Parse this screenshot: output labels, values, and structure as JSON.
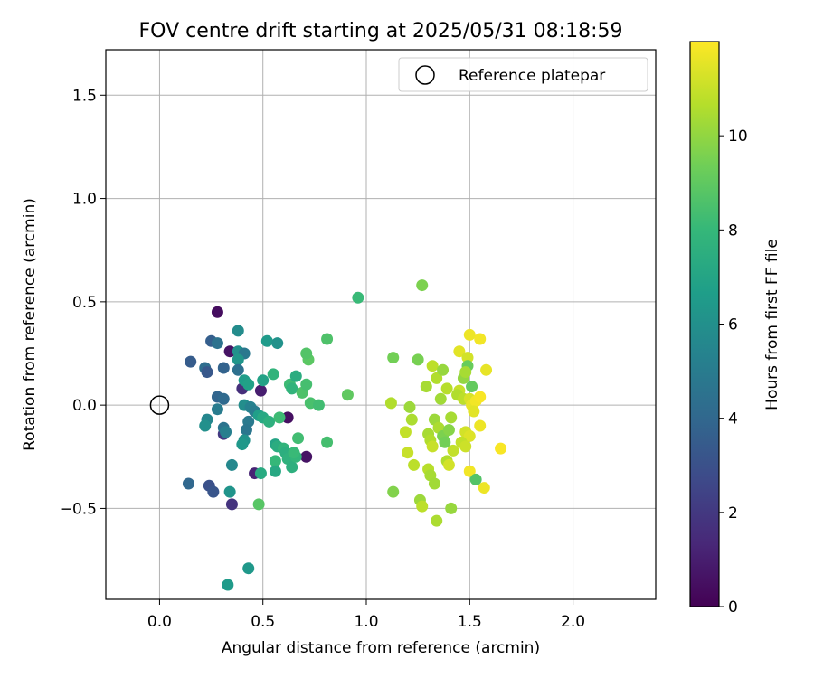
{
  "chart_data": {
    "type": "scatter",
    "title": "FOV centre drift starting at 2025/05/31 08:18:59",
    "xlabel": "Angular distance from reference (arcmin)",
    "ylabel": "Rotation from reference (arcmin)",
    "xlim": [
      -0.26,
      2.4
    ],
    "ylim": [
      -0.94,
      1.72
    ],
    "xticks": [
      0.0,
      0.5,
      1.0,
      1.5,
      2.0
    ],
    "xtick_labels": [
      "0.0",
      "0.5",
      "1.0",
      "1.5",
      "2.0"
    ],
    "yticks": [
      -0.5,
      0.0,
      0.5,
      1.0,
      1.5
    ],
    "ytick_labels": [
      "−0.5",
      "0.0",
      "0.5",
      "1.0",
      "1.5"
    ],
    "grid": true,
    "legend": {
      "position": "top-right",
      "label": "Reference platepar"
    },
    "reference_point": {
      "x": 0.0,
      "y": 0.0
    },
    "colorbar": {
      "label": "Hours from first FF file",
      "colormap": "viridis",
      "range": [
        0,
        12
      ],
      "ticks": [
        0,
        2,
        4,
        6,
        8,
        10
      ],
      "tick_labels": [
        "0",
        "2",
        "4",
        "6",
        "8",
        "10"
      ],
      "colors": [
        "#440154",
        "#482878",
        "#3e4989",
        "#31688e",
        "#26828e",
        "#1f9e89",
        "#35b779",
        "#6ece58",
        "#b5de2b",
        "#fde725"
      ]
    },
    "points": [
      {
        "x": 0.28,
        "y": 0.45,
        "t": 0.4
      },
      {
        "x": 0.34,
        "y": 0.26,
        "t": 0.6
      },
      {
        "x": 0.62,
        "y": -0.06,
        "t": 0.5
      },
      {
        "x": 0.71,
        "y": -0.25,
        "t": 0.6
      },
      {
        "x": 0.49,
        "y": 0.07,
        "t": 1.0
      },
      {
        "x": 0.4,
        "y": 0.08,
        "t": 1.6
      },
      {
        "x": 0.35,
        "y": -0.48,
        "t": 1.8
      },
      {
        "x": 0.31,
        "y": -0.14,
        "t": 2.0
      },
      {
        "x": 0.46,
        "y": -0.33,
        "t": 1.2
      },
      {
        "x": 0.24,
        "y": -0.39,
        "t": 3.0
      },
      {
        "x": 0.26,
        "y": -0.42,
        "t": 3.2
      },
      {
        "x": 0.14,
        "y": -0.38,
        "t": 4.0
      },
      {
        "x": 0.15,
        "y": 0.21,
        "t": 3.5
      },
      {
        "x": 0.25,
        "y": 0.31,
        "t": 3.6
      },
      {
        "x": 0.28,
        "y": 0.3,
        "t": 4.5
      },
      {
        "x": 0.31,
        "y": 0.18,
        "t": 3.8
      },
      {
        "x": 0.22,
        "y": 0.18,
        "t": 4.3
      },
      {
        "x": 0.23,
        "y": 0.16,
        "t": 3.3
      },
      {
        "x": 0.28,
        "y": 0.04,
        "t": 3.9
      },
      {
        "x": 0.31,
        "y": 0.03,
        "t": 4.1
      },
      {
        "x": 0.28,
        "y": -0.02,
        "t": 5.0
      },
      {
        "x": 0.23,
        "y": -0.07,
        "t": 5.5
      },
      {
        "x": 0.22,
        "y": -0.1,
        "t": 6.0
      },
      {
        "x": 0.31,
        "y": -0.11,
        "t": 4.6
      },
      {
        "x": 0.32,
        "y": -0.13,
        "t": 5.2
      },
      {
        "x": 0.35,
        "y": -0.29,
        "t": 5.6
      },
      {
        "x": 0.34,
        "y": -0.42,
        "t": 6.2
      },
      {
        "x": 0.33,
        "y": -0.87,
        "t": 6.5
      },
      {
        "x": 0.43,
        "y": -0.79,
        "t": 6.4
      },
      {
        "x": 0.38,
        "y": 0.36,
        "t": 5.8
      },
      {
        "x": 0.38,
        "y": 0.26,
        "t": 6.0
      },
      {
        "x": 0.41,
        "y": 0.25,
        "t": 4.8
      },
      {
        "x": 0.38,
        "y": 0.22,
        "t": 6.3
      },
      {
        "x": 0.38,
        "y": 0.17,
        "t": 4.4
      },
      {
        "x": 0.41,
        "y": 0.12,
        "t": 6.6
      },
      {
        "x": 0.43,
        "y": 0.1,
        "t": 6.8
      },
      {
        "x": 0.41,
        "y": 0.0,
        "t": 5.9
      },
      {
        "x": 0.44,
        "y": -0.01,
        "t": 5.3
      },
      {
        "x": 0.43,
        "y": -0.08,
        "t": 4.9
      },
      {
        "x": 0.42,
        "y": -0.12,
        "t": 4.7
      },
      {
        "x": 0.41,
        "y": -0.17,
        "t": 6.1
      },
      {
        "x": 0.4,
        "y": -0.19,
        "t": 6.4
      },
      {
        "x": 0.46,
        "y": -0.03,
        "t": 5.1
      },
      {
        "x": 0.48,
        "y": -0.05,
        "t": 6.7
      },
      {
        "x": 0.49,
        "y": -0.33,
        "t": 7.3
      },
      {
        "x": 0.48,
        "y": -0.48,
        "t": 8.8
      },
      {
        "x": 0.5,
        "y": 0.12,
        "t": 6.9
      },
      {
        "x": 0.52,
        "y": 0.31,
        "t": 6.5
      },
      {
        "x": 0.57,
        "y": 0.3,
        "t": 6.1
      },
      {
        "x": 0.55,
        "y": 0.15,
        "t": 7.8
      },
      {
        "x": 0.5,
        "y": -0.06,
        "t": 7.2
      },
      {
        "x": 0.53,
        "y": -0.08,
        "t": 7.6
      },
      {
        "x": 0.56,
        "y": -0.19,
        "t": 7.0
      },
      {
        "x": 0.57,
        "y": -0.2,
        "t": 7.4
      },
      {
        "x": 0.58,
        "y": -0.06,
        "t": 8.2
      },
      {
        "x": 0.6,
        "y": -0.21,
        "t": 7.8
      },
      {
        "x": 0.61,
        "y": -0.23,
        "t": 7.5
      },
      {
        "x": 0.62,
        "y": -0.26,
        "t": 7.7
      },
      {
        "x": 0.56,
        "y": -0.27,
        "t": 8.0
      },
      {
        "x": 0.56,
        "y": -0.32,
        "t": 7.2
      },
      {
        "x": 0.64,
        "y": -0.3,
        "t": 7.6
      },
      {
        "x": 0.66,
        "y": -0.25,
        "t": 7.9
      },
      {
        "x": 0.65,
        "y": -0.23,
        "t": 8.1
      },
      {
        "x": 0.67,
        "y": -0.16,
        "t": 8.3
      },
      {
        "x": 0.63,
        "y": 0.1,
        "t": 8.2
      },
      {
        "x": 0.64,
        "y": 0.08,
        "t": 7.8
      },
      {
        "x": 0.66,
        "y": 0.14,
        "t": 7.4
      },
      {
        "x": 0.69,
        "y": 0.06,
        "t": 8.6
      },
      {
        "x": 0.71,
        "y": 0.1,
        "t": 8.4
      },
      {
        "x": 0.72,
        "y": 0.22,
        "t": 8.9
      },
      {
        "x": 0.71,
        "y": 0.25,
        "t": 8.7
      },
      {
        "x": 0.73,
        "y": 0.01,
        "t": 8.5
      },
      {
        "x": 0.77,
        "y": 0.0,
        "t": 8.3
      },
      {
        "x": 0.81,
        "y": 0.32,
        "t": 8.6
      },
      {
        "x": 0.81,
        "y": -0.18,
        "t": 8.4
      },
      {
        "x": 0.91,
        "y": 0.05,
        "t": 9.0
      },
      {
        "x": 0.96,
        "y": 0.52,
        "t": 8.1
      },
      {
        "x": 1.27,
        "y": 0.58,
        "t": 9.6
      },
      {
        "x": 1.13,
        "y": 0.23,
        "t": 9.4
      },
      {
        "x": 1.25,
        "y": 0.22,
        "t": 9.5
      },
      {
        "x": 1.12,
        "y": 0.01,
        "t": 10.6
      },
      {
        "x": 1.21,
        "y": -0.01,
        "t": 10.2
      },
      {
        "x": 1.29,
        "y": 0.09,
        "t": 10.4
      },
      {
        "x": 1.32,
        "y": 0.19,
        "t": 10.8
      },
      {
        "x": 1.34,
        "y": 0.13,
        "t": 10.6
      },
      {
        "x": 1.37,
        "y": 0.17,
        "t": 10.1
      },
      {
        "x": 1.36,
        "y": 0.03,
        "t": 10.3
      },
      {
        "x": 1.39,
        "y": 0.08,
        "t": 10.7
      },
      {
        "x": 1.22,
        "y": -0.07,
        "t": 10.5
      },
      {
        "x": 1.19,
        "y": -0.13,
        "t": 10.9
      },
      {
        "x": 1.2,
        "y": -0.23,
        "t": 11.0
      },
      {
        "x": 1.23,
        "y": -0.29,
        "t": 10.8
      },
      {
        "x": 1.3,
        "y": -0.14,
        "t": 10.4
      },
      {
        "x": 1.31,
        "y": -0.17,
        "t": 10.6
      },
      {
        "x": 1.32,
        "y": -0.2,
        "t": 11.0
      },
      {
        "x": 1.33,
        "y": -0.07,
        "t": 10.2
      },
      {
        "x": 1.35,
        "y": -0.11,
        "t": 10.5
      },
      {
        "x": 1.37,
        "y": -0.15,
        "t": 9.6
      },
      {
        "x": 1.38,
        "y": -0.18,
        "t": 9.4
      },
      {
        "x": 1.4,
        "y": -0.12,
        "t": 9.8
      },
      {
        "x": 1.41,
        "y": -0.06,
        "t": 10.4
      },
      {
        "x": 1.42,
        "y": -0.22,
        "t": 10.9
      },
      {
        "x": 1.39,
        "y": -0.27,
        "t": 10.6
      },
      {
        "x": 1.4,
        "y": -0.29,
        "t": 11.2
      },
      {
        "x": 1.3,
        "y": -0.31,
        "t": 10.7
      },
      {
        "x": 1.31,
        "y": -0.34,
        "t": 10.4
      },
      {
        "x": 1.33,
        "y": -0.38,
        "t": 10.3
      },
      {
        "x": 1.26,
        "y": -0.46,
        "t": 10.2
      },
      {
        "x": 1.27,
        "y": -0.49,
        "t": 10.8
      },
      {
        "x": 1.34,
        "y": -0.56,
        "t": 10.5
      },
      {
        "x": 1.41,
        "y": -0.5,
        "t": 10.1
      },
      {
        "x": 1.13,
        "y": -0.42,
        "t": 9.7
      },
      {
        "x": 1.45,
        "y": 0.26,
        "t": 11.5
      },
      {
        "x": 1.49,
        "y": 0.23,
        "t": 11.2
      },
      {
        "x": 1.5,
        "y": 0.34,
        "t": 11.7
      },
      {
        "x": 1.55,
        "y": 0.32,
        "t": 11.8
      },
      {
        "x": 1.49,
        "y": 0.19,
        "t": 9.2
      },
      {
        "x": 1.47,
        "y": 0.13,
        "t": 10.0
      },
      {
        "x": 1.48,
        "y": 0.16,
        "t": 10.4
      },
      {
        "x": 1.51,
        "y": 0.09,
        "t": 9.1
      },
      {
        "x": 1.45,
        "y": 0.07,
        "t": 11.0
      },
      {
        "x": 1.44,
        "y": 0.05,
        "t": 10.6
      },
      {
        "x": 1.47,
        "y": 0.03,
        "t": 10.8
      },
      {
        "x": 1.5,
        "y": 0.03,
        "t": 11.3
      },
      {
        "x": 1.51,
        "y": 0.0,
        "t": 11.6
      },
      {
        "x": 1.53,
        "y": 0.02,
        "t": 11.8
      },
      {
        "x": 1.55,
        "y": 0.04,
        "t": 11.9
      },
      {
        "x": 1.52,
        "y": -0.03,
        "t": 11.5
      },
      {
        "x": 1.55,
        "y": -0.1,
        "t": 11.7
      },
      {
        "x": 1.48,
        "y": -0.13,
        "t": 11.2
      },
      {
        "x": 1.5,
        "y": -0.15,
        "t": 11.4
      },
      {
        "x": 1.46,
        "y": -0.18,
        "t": 10.9
      },
      {
        "x": 1.48,
        "y": -0.2,
        "t": 11.1
      },
      {
        "x": 1.58,
        "y": 0.17,
        "t": 11.6
      },
      {
        "x": 1.5,
        "y": -0.32,
        "t": 11.8
      },
      {
        "x": 1.53,
        "y": -0.36,
        "t": 8.7
      },
      {
        "x": 1.57,
        "y": -0.4,
        "t": 11.7
      },
      {
        "x": 1.65,
        "y": -0.21,
        "t": 11.9
      }
    ]
  }
}
